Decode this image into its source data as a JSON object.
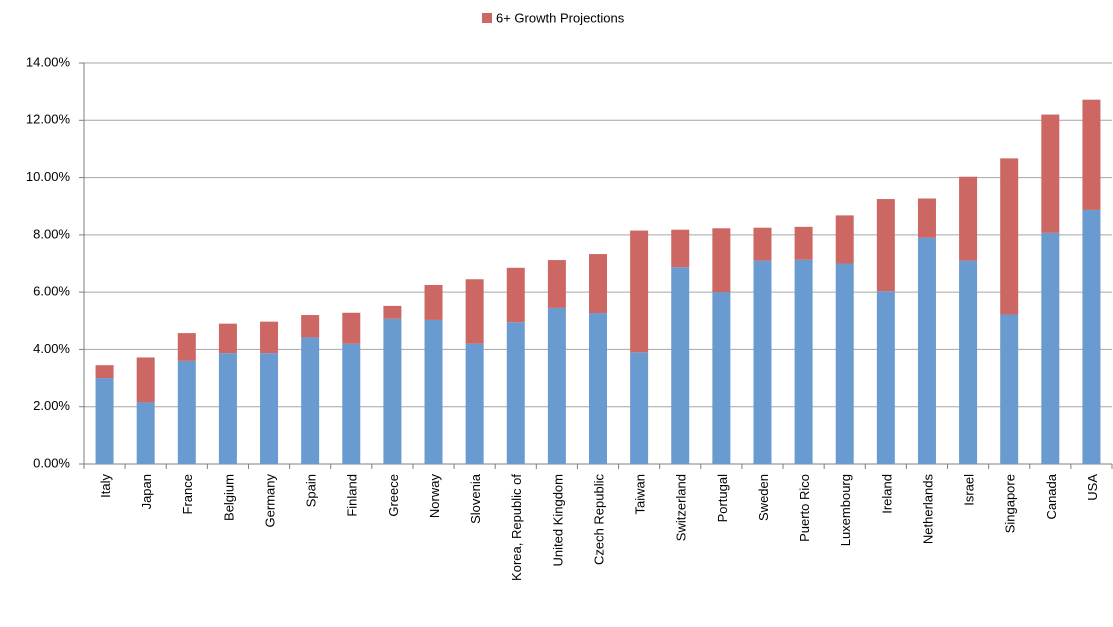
{
  "chart_data": {
    "type": "stacked_bar",
    "categories": [
      "Italy",
      "Japan",
      "France",
      "Belgium",
      "Germany",
      "Spain",
      "Finland",
      "Greece",
      "Norway",
      "Slovenia",
      "Korea, Republic of",
      "United Kingdom",
      "Czech Republic",
      "Taiwan",
      "Switzerland",
      "Portugal",
      "Sweden",
      "Puerto Rico",
      "Luxembourg",
      "Ireland",
      "Netherlands",
      "Israel",
      "Singapore",
      "Canada",
      "USA"
    ],
    "series": [
      {
        "color": "#6a9bd0",
        "values": [
          3.0,
          2.15,
          3.6,
          3.87,
          3.87,
          4.42,
          4.2,
          5.07,
          5.03,
          4.2,
          4.95,
          5.45,
          5.27,
          3.9,
          6.87,
          6.0,
          7.1,
          7.13,
          7.0,
          6.03,
          7.9,
          7.1,
          5.22,
          8.07,
          8.87
        ]
      },
      {
        "name": "6+ Growth Projections",
        "color": "#cd6763",
        "values": [
          0.45,
          1.57,
          0.97,
          1.03,
          1.1,
          0.78,
          1.08,
          0.45,
          1.22,
          2.25,
          1.9,
          1.67,
          2.06,
          4.25,
          1.31,
          2.23,
          1.15,
          1.15,
          1.68,
          3.22,
          1.37,
          2.93,
          5.45,
          4.13,
          3.85
        ]
      }
    ],
    "ylim": [
      0,
      14
    ],
    "yticks": [
      {
        "value": 0,
        "label": "0.00%"
      },
      {
        "value": 2,
        "label": "2.00%"
      },
      {
        "value": 4,
        "label": "4.00%"
      },
      {
        "value": 6,
        "label": "6.00%"
      },
      {
        "value": 8,
        "label": "8.00%"
      },
      {
        "value": 10,
        "label": "10.00%"
      },
      {
        "value": 12,
        "label": "12.00%"
      },
      {
        "value": 14,
        "label": "14.00%"
      }
    ],
    "grid": true,
    "legend": "top"
  }
}
